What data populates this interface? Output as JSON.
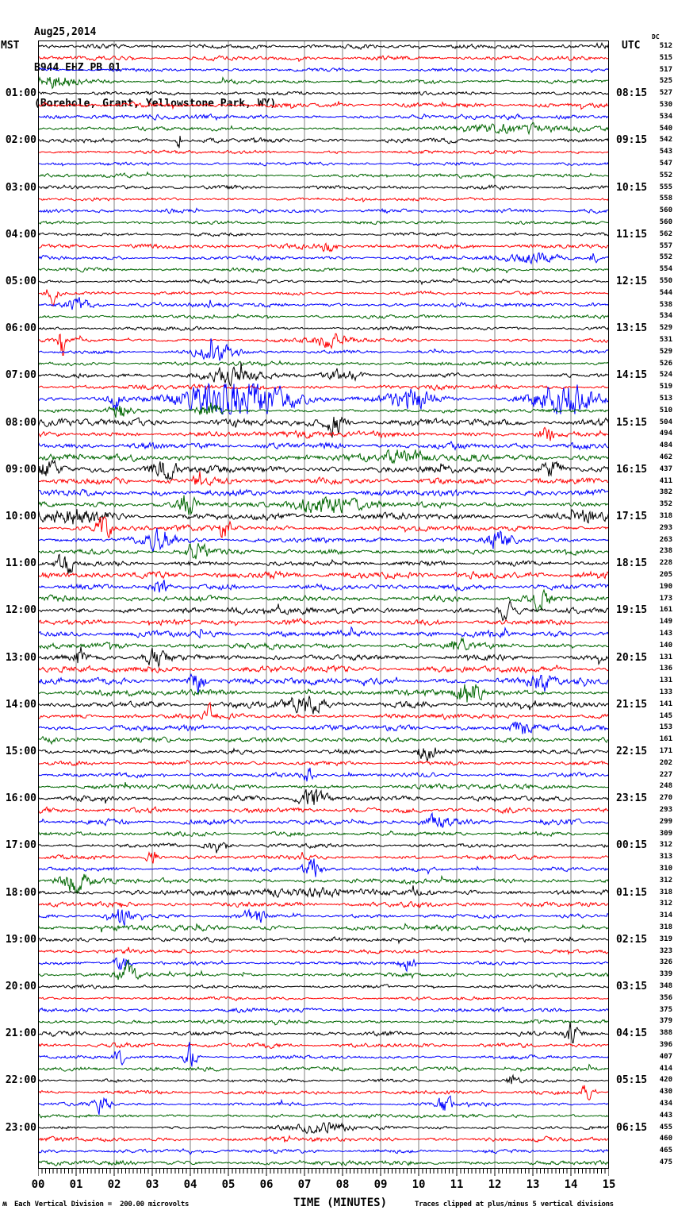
{
  "title": {
    "date": "Aug25,2014",
    "station": "B944 EHZ PB 01",
    "location": "(Borehole, Grant, Yellowstone Park, WY)"
  },
  "axes": {
    "left_header": "MST",
    "right_header": "UTC",
    "dc_header": "DC",
    "x_title": "TIME (MINUTES)",
    "x_tick_labels": [
      "00",
      "01",
      "02",
      "03",
      "04",
      "05",
      "06",
      "07",
      "08",
      "09",
      "10",
      "11",
      "12",
      "13",
      "14",
      "15"
    ]
  },
  "footer": {
    "left_note": "Each Vertical Division =  200.00 microvolts",
    "right_note": "Traces clipped at plus/minus 5 vertical divisions",
    "corner_glyph": "ʍ"
  },
  "chart_data": {
    "type": "line",
    "subtype": "helicorder-seismogram",
    "x_range_minutes": [
      0,
      15
    ],
    "minutes_per_row": 15,
    "rows_total": 96,
    "row_color_cycle": [
      "black",
      "red",
      "blue",
      "green"
    ],
    "trace_colors": {
      "black": "#000000",
      "red": "#ff0000",
      "blue": "#0000ff",
      "green": "#006600"
    },
    "grid_color": "#808080",
    "first_labeled_row": 5,
    "label_every_n_rows": 4,
    "mst_labels": [
      "01:00",
      "02:00",
      "03:00",
      "04:00",
      "05:00",
      "06:00",
      "07:00",
      "08:00",
      "09:00",
      "10:00",
      "11:00",
      "12:00",
      "13:00",
      "14:00",
      "15:00",
      "16:00",
      "17:00",
      "18:00",
      "19:00",
      "20:00",
      "21:00",
      "22:00",
      "23:00"
    ],
    "utc_labels": [
      "08:15",
      "09:15",
      "10:15",
      "11:15",
      "12:15",
      "13:15",
      "14:15",
      "15:15",
      "16:15",
      "17:15",
      "18:15",
      "19:15",
      "20:15",
      "21:15",
      "22:15",
      "23:15",
      "00:15",
      "01:15",
      "02:15",
      "03:15",
      "04:15",
      "05:15",
      "06:15"
    ],
    "dc_values": [
      512,
      515,
      517,
      525,
      527,
      530,
      534,
      540,
      542,
      543,
      547,
      552,
      555,
      558,
      560,
      560,
      562,
      557,
      552,
      554,
      550,
      544,
      538,
      534,
      529,
      531,
      529,
      526,
      524,
      519,
      513,
      510,
      504,
      494,
      484,
      462,
      437,
      411,
      382,
      352,
      318,
      293,
      263,
      238,
      228,
      205,
      190,
      173,
      161,
      149,
      143,
      140,
      131,
      136,
      131,
      133,
      141,
      145,
      153,
      161,
      171,
      202,
      227,
      248,
      270,
      293,
      299,
      309,
      312,
      313,
      310,
      312,
      318,
      312,
      314,
      318,
      319,
      323,
      326,
      339,
      348,
      356,
      375,
      379,
      388,
      396,
      407,
      414,
      420,
      430,
      434,
      443,
      455,
      460,
      465,
      475
    ],
    "vertical_division_microvolts": 200.0,
    "clip_divisions": 5,
    "events": [
      {
        "row": 4,
        "c": 0.5,
        "w": 0.55,
        "a": 5
      },
      {
        "row": 8,
        "c": 12.5,
        "w": 1.8,
        "a": 2.5
      },
      {
        "row": 9,
        "c": 3.7,
        "w": 0.05,
        "a": 12
      },
      {
        "row": 18,
        "c": 7.6,
        "w": 0.3,
        "a": 3
      },
      {
        "row": 19,
        "c": 13.0,
        "w": 0.7,
        "a": 3.5
      },
      {
        "row": 19,
        "c": 14.6,
        "w": 0.08,
        "a": 7
      },
      {
        "row": 22,
        "c": 0.35,
        "w": 0.15,
        "a": 8
      },
      {
        "row": 23,
        "c": 1.0,
        "w": 0.4,
        "a": 4
      },
      {
        "row": 26,
        "c": 0.6,
        "w": 0.08,
        "a": 11
      },
      {
        "row": 26,
        "c": 7.7,
        "w": 0.5,
        "a": 5
      },
      {
        "row": 27,
        "c": 4.7,
        "w": 0.5,
        "a": 6
      },
      {
        "row": 29,
        "c": 5.0,
        "w": 0.8,
        "a": 4.5
      },
      {
        "row": 29,
        "c": 8.0,
        "w": 0.5,
        "a": 4
      },
      {
        "row": 31,
        "c": 5.2,
        "w": 1.3,
        "a": 16
      },
      {
        "row": 31,
        "c": 9.8,
        "w": 0.6,
        "a": 8
      },
      {
        "row": 31,
        "c": 13.8,
        "w": 0.8,
        "a": 11
      },
      {
        "row": 31,
        "c": 2.0,
        "w": 0.15,
        "a": 6
      },
      {
        "row": 32,
        "c": 2.2,
        "w": 0.25,
        "a": 6
      },
      {
        "row": 32,
        "c": 4.5,
        "w": 0.3,
        "a": 5
      },
      {
        "row": 33,
        "c": 7.8,
        "w": 0.25,
        "a": 8
      },
      {
        "row": 34,
        "c": 13.4,
        "w": 0.2,
        "a": 6
      },
      {
        "row": 36,
        "c": 9.5,
        "w": 0.5,
        "a": 4
      },
      {
        "row": 37,
        "c": 0.2,
        "w": 0.3,
        "a": 5
      },
      {
        "row": 37,
        "c": 3.3,
        "w": 0.4,
        "a": 6
      },
      {
        "row": 37,
        "c": 13.5,
        "w": 0.3,
        "a": 5
      },
      {
        "row": 38,
        "c": 4.2,
        "w": 0.1,
        "a": 8
      },
      {
        "row": 40,
        "c": 3.9,
        "w": 0.25,
        "a": 8
      },
      {
        "row": 40,
        "c": 7.6,
        "w": 0.7,
        "a": 5
      },
      {
        "row": 41,
        "c": 0.9,
        "w": 0.7,
        "a": 5
      },
      {
        "row": 41,
        "c": 14.5,
        "w": 0.3,
        "a": 5
      },
      {
        "row": 42,
        "c": 1.7,
        "w": 0.2,
        "a": 8
      },
      {
        "row": 42,
        "c": 4.9,
        "w": 0.15,
        "a": 6
      },
      {
        "row": 43,
        "c": 3.2,
        "w": 0.35,
        "a": 7
      },
      {
        "row": 43,
        "c": 12.1,
        "w": 0.3,
        "a": 6
      },
      {
        "row": 44,
        "c": 4.2,
        "w": 0.3,
        "a": 6
      },
      {
        "row": 45,
        "c": 0.7,
        "w": 0.2,
        "a": 9
      },
      {
        "row": 47,
        "c": 3.2,
        "w": 0.2,
        "a": 5
      },
      {
        "row": 48,
        "c": 13.2,
        "w": 0.25,
        "a": 7
      },
      {
        "row": 49,
        "c": 12.3,
        "w": 0.2,
        "a": 6
      },
      {
        "row": 52,
        "c": 11.0,
        "w": 0.2,
        "a": 5
      },
      {
        "row": 53,
        "c": 1.1,
        "w": 0.12,
        "a": 7
      },
      {
        "row": 53,
        "c": 3.1,
        "w": 0.3,
        "a": 6
      },
      {
        "row": 55,
        "c": 4.2,
        "w": 0.2,
        "a": 8
      },
      {
        "row": 55,
        "c": 13.2,
        "w": 0.25,
        "a": 7
      },
      {
        "row": 56,
        "c": 11.3,
        "w": 0.3,
        "a": 9
      },
      {
        "row": 57,
        "c": 7.0,
        "w": 0.5,
        "a": 6
      },
      {
        "row": 58,
        "c": 4.5,
        "w": 0.15,
        "a": 6
      },
      {
        "row": 59,
        "c": 12.7,
        "w": 0.25,
        "a": 6
      },
      {
        "row": 61,
        "c": 10.2,
        "w": 0.25,
        "a": 6
      },
      {
        "row": 63,
        "c": 7.1,
        "w": 0.15,
        "a": 5
      },
      {
        "row": 65,
        "c": 7.2,
        "w": 0.35,
        "a": 7
      },
      {
        "row": 67,
        "c": 10.5,
        "w": 0.4,
        "a": 4
      },
      {
        "row": 69,
        "c": 4.7,
        "w": 0.3,
        "a": 5
      },
      {
        "row": 70,
        "c": 3.0,
        "w": 0.15,
        "a": 5
      },
      {
        "row": 71,
        "c": 7.2,
        "w": 0.25,
        "a": 7
      },
      {
        "row": 72,
        "c": 1.0,
        "w": 0.4,
        "a": 7
      },
      {
        "row": 73,
        "c": 7.0,
        "w": 1.5,
        "a": 2.5
      },
      {
        "row": 75,
        "c": 2.2,
        "w": 0.25,
        "a": 7
      },
      {
        "row": 75,
        "c": 5.7,
        "w": 0.3,
        "a": 5
      },
      {
        "row": 79,
        "c": 2.2,
        "w": 0.2,
        "a": 6
      },
      {
        "row": 79,
        "c": 9.7,
        "w": 0.2,
        "a": 5
      },
      {
        "row": 80,
        "c": 2.3,
        "w": 0.25,
        "a": 7
      },
      {
        "row": 85,
        "c": 14.0,
        "w": 0.15,
        "a": 7
      },
      {
        "row": 87,
        "c": 2.1,
        "w": 0.12,
        "a": 8
      },
      {
        "row": 87,
        "c": 4.0,
        "w": 0.15,
        "a": 10
      },
      {
        "row": 89,
        "c": 12.5,
        "w": 0.15,
        "a": 5
      },
      {
        "row": 90,
        "c": 14.4,
        "w": 0.12,
        "a": 6
      },
      {
        "row": 91,
        "c": 1.7,
        "w": 0.2,
        "a": 7
      },
      {
        "row": 91,
        "c": 10.7,
        "w": 0.2,
        "a": 6
      },
      {
        "row": 93,
        "c": 7.5,
        "w": 0.7,
        "a": 3.5
      }
    ]
  }
}
